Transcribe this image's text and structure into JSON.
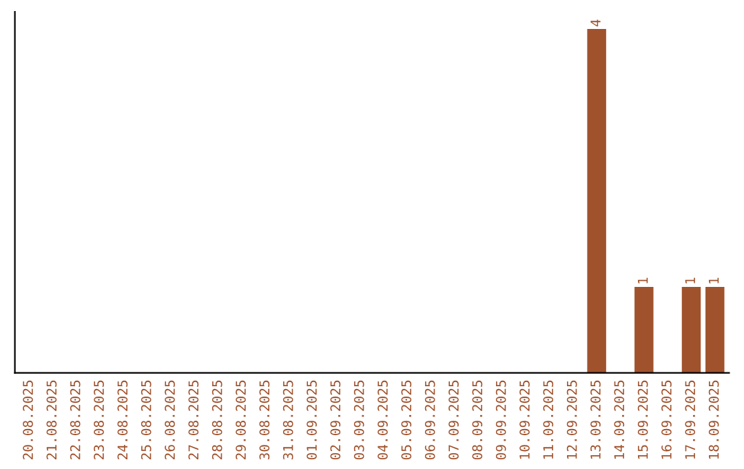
{
  "chart_data": {
    "type": "bar",
    "categories": [
      "20.08.2025",
      "21.08.2025",
      "22.08.2025",
      "23.08.2025",
      "24.08.2025",
      "25.08.2025",
      "26.08.2025",
      "27.08.2025",
      "28.08.2025",
      "29.08.2025",
      "30.08.2025",
      "31.08.2025",
      "01.09.2025",
      "02.09.2025",
      "03.09.2025",
      "04.09.2025",
      "05.09.2025",
      "06.09.2025",
      "07.09.2025",
      "08.09.2025",
      "09.09.2025",
      "10.09.2025",
      "11.09.2025",
      "12.09.2025",
      "13.09.2025",
      "14.09.2025",
      "15.09.2025",
      "16.09.2025",
      "17.09.2025",
      "18.09.2025"
    ],
    "values": [
      null,
      null,
      null,
      null,
      null,
      null,
      null,
      null,
      null,
      null,
      null,
      null,
      null,
      null,
      null,
      null,
      null,
      null,
      null,
      null,
      null,
      null,
      null,
      null,
      4,
      null,
      1,
      null,
      1,
      1
    ],
    "data_labels": true,
    "color": "#a0522d",
    "tick_labels": "x",
    "grid": false,
    "legend": false
  }
}
